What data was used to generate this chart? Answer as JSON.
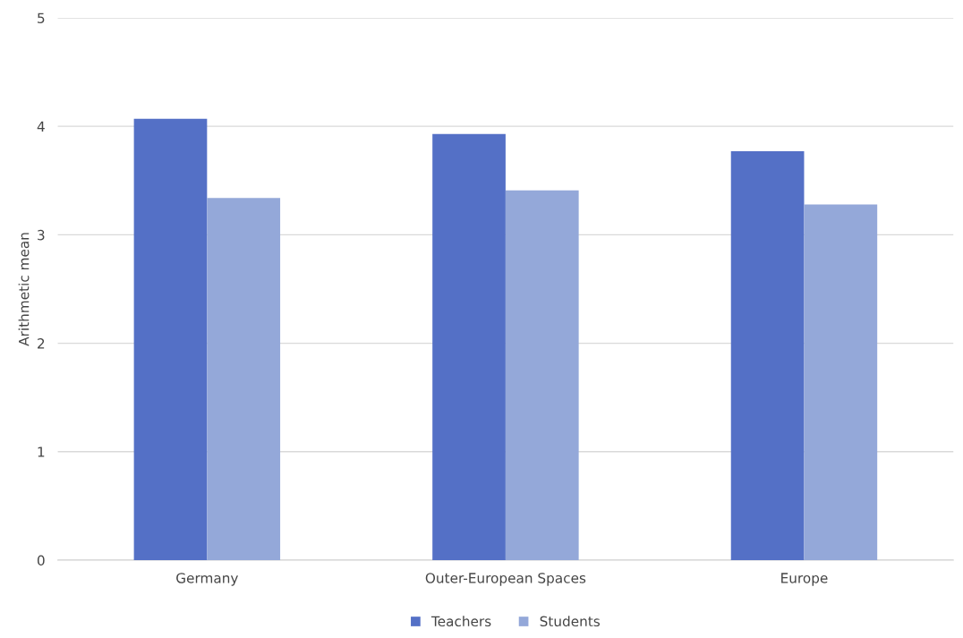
{
  "chart_data": {
    "type": "bar",
    "ylabel": "Arithmetic mean",
    "categories": [
      "Germany",
      "Outer-European Spaces",
      "Europe"
    ],
    "series": [
      {
        "name": "Teachers",
        "color": "#5470c6",
        "values": [
          4.07,
          3.93,
          3.77
        ]
      },
      {
        "name": "Students",
        "color": "#94a8d9",
        "values": [
          3.34,
          3.41,
          3.28
        ]
      }
    ],
    "ylim": [
      0,
      5
    ],
    "yticks": [
      0,
      1,
      2,
      3,
      4,
      5
    ],
    "grid": "y",
    "legend": "bottom"
  }
}
